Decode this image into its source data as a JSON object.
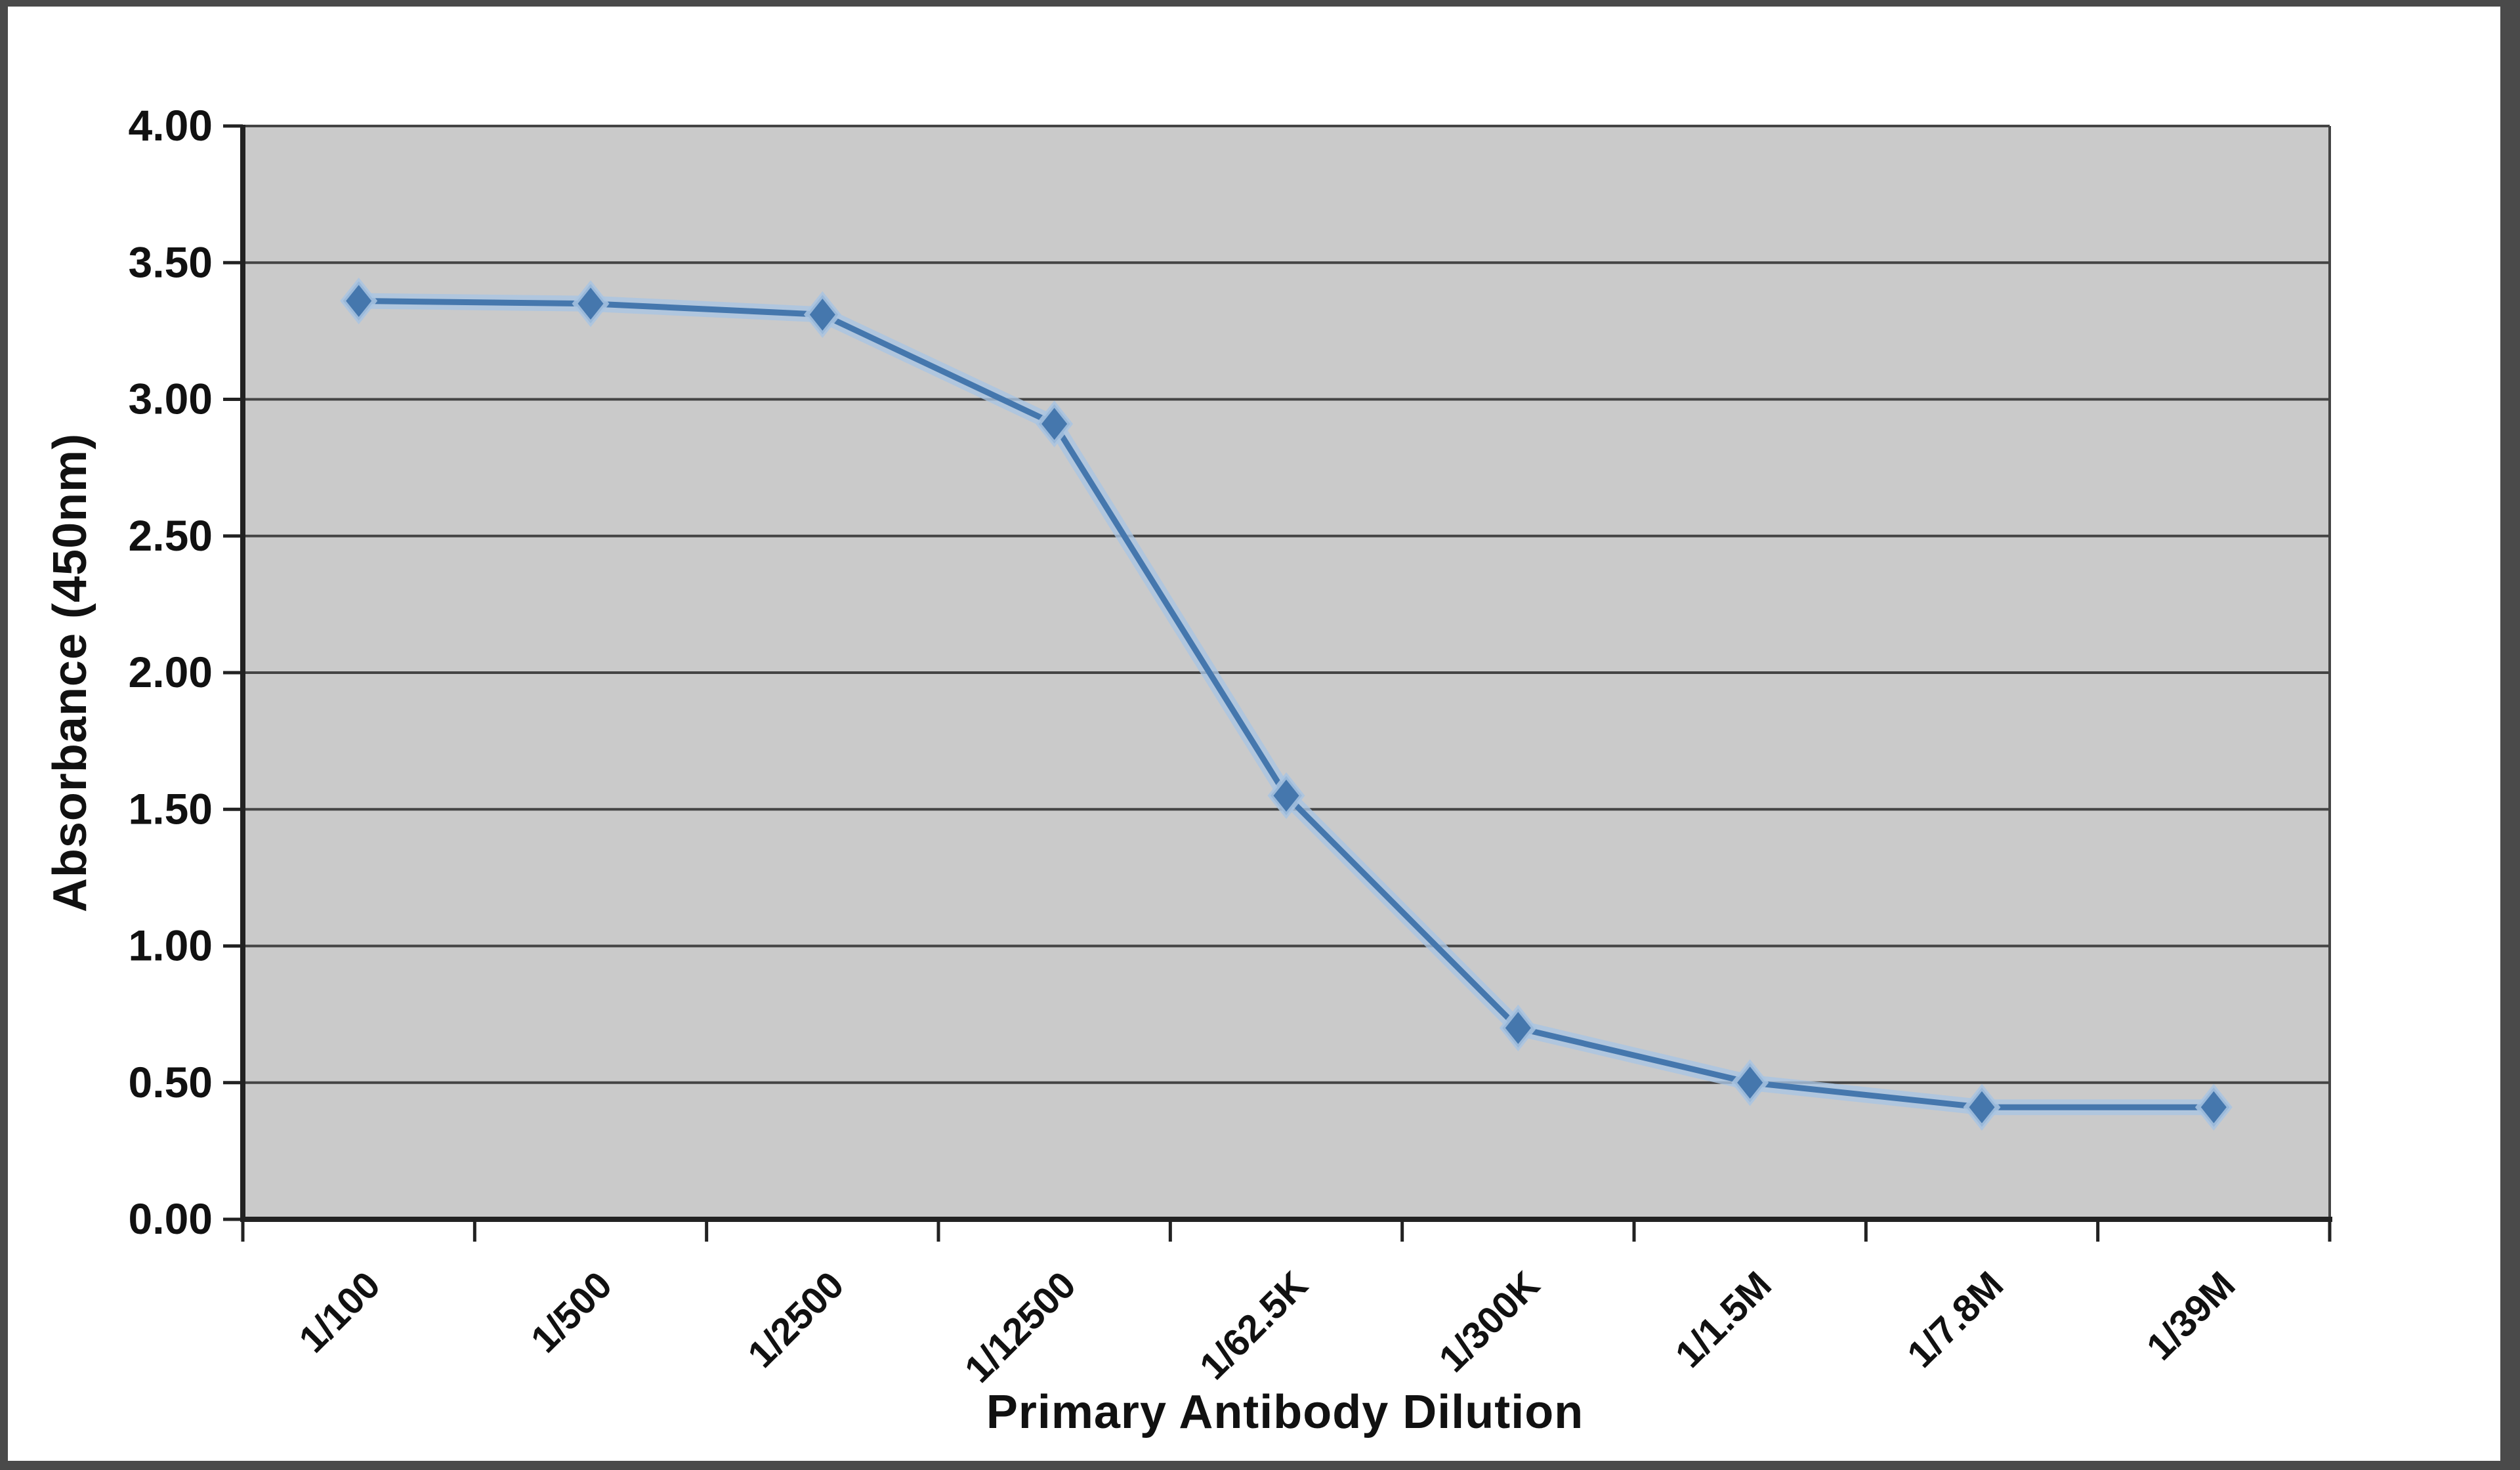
{
  "chart_data": {
    "type": "line",
    "title": "",
    "categories": [
      "1/100",
      "1/500",
      "1/2500",
      "1/12500",
      "1/62.5K",
      "1/300K",
      "1/1.5M",
      "1/7.8M",
      "1/39M"
    ],
    "series": [
      {
        "name": "Absorbance (450nm)",
        "values": [
          3.36,
          3.35,
          3.31,
          2.91,
          1.55,
          0.7,
          0.5,
          0.41,
          0.41
        ]
      }
    ],
    "xlabel": "Primary Antibody Dilution",
    "ylabel": "Absorbance (450nm)",
    "ylim": [
      0,
      4
    ],
    "ytick_step": 0.5,
    "ytick_labels": [
      "0.00",
      "0.50",
      "1.00",
      "1.50",
      "2.00",
      "2.50",
      "3.00",
      "3.50",
      "4.00"
    ],
    "grid": true,
    "legend": "none",
    "x_tick_label_rotation_deg": -45,
    "marker": "diamond",
    "colors": {
      "line": "#4577ad",
      "halo": "#a9c4e2",
      "plot_bg": "#cacaca",
      "gridline": "#444444",
      "axis": "#222222",
      "text": "#111111",
      "frame": "#4a4a4a"
    }
  }
}
